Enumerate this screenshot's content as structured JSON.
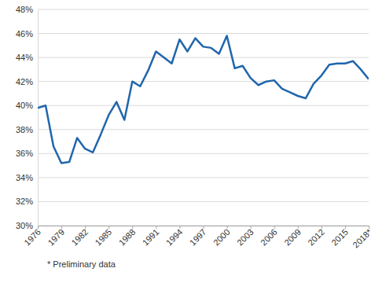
{
  "chart_data": {
    "type": "line",
    "x": [
      1976,
      1977,
      1978,
      1979,
      1980,
      1981,
      1982,
      1983,
      1984,
      1985,
      1986,
      1987,
      1988,
      1989,
      1990,
      1991,
      1992,
      1993,
      1994,
      1995,
      1996,
      1997,
      1998,
      1999,
      2000,
      2001,
      2002,
      2003,
      2004,
      2005,
      2006,
      2007,
      2008,
      2009,
      2010,
      2011,
      2012,
      2013,
      2014,
      2015,
      2016,
      2017,
      2018
    ],
    "values": [
      39.8,
      40.0,
      36.6,
      35.2,
      35.3,
      37.3,
      36.4,
      36.1,
      37.6,
      39.2,
      40.3,
      38.8,
      42.0,
      41.6,
      42.9,
      44.5,
      44.0,
      43.5,
      45.5,
      44.5,
      45.6,
      44.9,
      44.8,
      44.3,
      45.8,
      43.1,
      43.3,
      42.3,
      41.7,
      42.0,
      42.1,
      41.4,
      41.1,
      40.8,
      40.6,
      41.8,
      42.5,
      43.4,
      43.5,
      43.5,
      43.7,
      43.0,
      42.2
    ],
    "color": "#2166ac",
    "xlim": [
      1976,
      2018
    ],
    "xticks": [
      1976,
      1979,
      1982,
      1985,
      1988,
      1991,
      1994,
      1997,
      2000,
      2003,
      2006,
      2009,
      2012,
      2015,
      {
        "value": 2018,
        "label": "2018*"
      }
    ],
    "ylim": [
      30,
      48
    ],
    "yticks": [
      {
        "value": 30,
        "label": "30%"
      },
      {
        "value": 32,
        "label": "32%"
      },
      {
        "value": 34,
        "label": "34%"
      },
      {
        "value": 36,
        "label": "36%"
      },
      {
        "value": 38,
        "label": "38%"
      },
      {
        "value": 40,
        "label": "40%"
      },
      {
        "value": 42,
        "label": "42%"
      },
      {
        "value": 44,
        "label": "44%"
      },
      {
        "value": 46,
        "label": "46%"
      },
      {
        "value": 48,
        "label": "48%"
      }
    ],
    "grid": true,
    "annotations": [
      "* Preliminary data"
    ]
  }
}
